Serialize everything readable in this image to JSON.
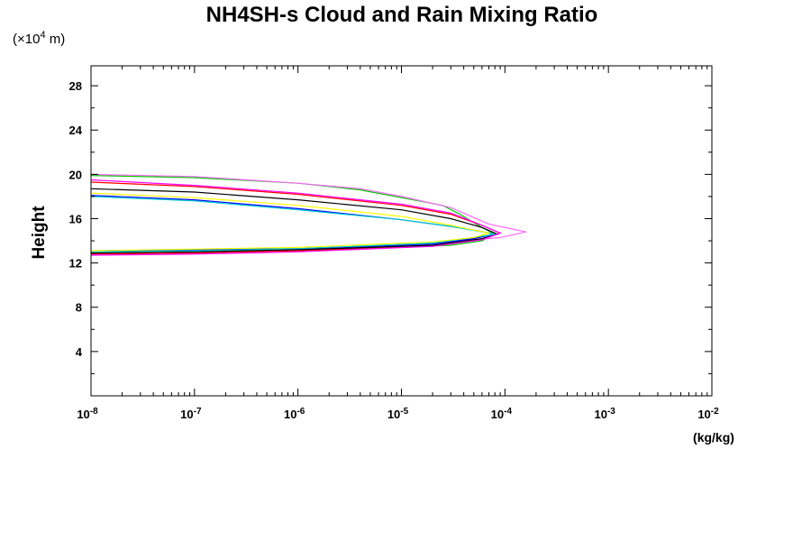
{
  "chart_data": {
    "type": "line",
    "title": "NH4SH-s Cloud and Rain Mixing Ratio",
    "ylabel": "Height",
    "xlabel": "(kg/kg)",
    "y_scale_note_prefix": "(×10",
    "y_scale_note_exp": "4",
    "y_scale_note_suffix": " m)",
    "x_scale": "log",
    "xlim": [
      1e-08,
      0.01
    ],
    "ylim": [
      0,
      29.8
    ],
    "x_ticks": [
      {
        "base": "10",
        "exp": "-8",
        "value": 1e-08
      },
      {
        "base": "10",
        "exp": "-7",
        "value": 1e-07
      },
      {
        "base": "10",
        "exp": "-6",
        "value": 1e-06
      },
      {
        "base": "10",
        "exp": "-5",
        "value": 1e-05
      },
      {
        "base": "10",
        "exp": "-4",
        "value": 0.0001
      },
      {
        "base": "10",
        "exp": "-3",
        "value": 0.001
      },
      {
        "base": "10",
        "exp": "-2",
        "value": 0.01
      }
    ],
    "y_ticks": [
      {
        "label": "4",
        "value": 4
      },
      {
        "label": "8",
        "value": 8
      },
      {
        "label": "12",
        "value": 12
      },
      {
        "label": "16",
        "value": 16
      },
      {
        "label": "20",
        "value": 20
      },
      {
        "label": "24",
        "value": 24
      },
      {
        "label": "28",
        "value": 28
      }
    ],
    "y_minor_step": 2,
    "grid": false,
    "series": [
      {
        "color": "#00cc00",
        "x": [
          1e-08,
          1e-07,
          1e-06,
          4e-06,
          1e-05,
          2.5e-05,
          3.5e-05,
          6e-05,
          8e-05,
          6e-05,
          3e-05,
          1e-05,
          1e-06,
          1e-07,
          1e-08
        ],
        "y": [
          19.9,
          19.7,
          19.2,
          18.6,
          17.9,
          17.2,
          16.5,
          15.2,
          14.6,
          14.0,
          13.6,
          13.4,
          13.2,
          13.1,
          13.1
        ]
      },
      {
        "color": "#ff66ff",
        "x": [
          1e-08,
          1e-07,
          1e-06,
          4e-06,
          1e-05,
          3e-05,
          7e-05,
          0.00016,
          9e-05,
          4e-05,
          1e-05,
          1e-06,
          1e-07,
          1e-08
        ],
        "y": [
          20.0,
          19.8,
          19.2,
          18.7,
          18.0,
          17.0,
          15.5,
          14.8,
          14.3,
          14.0,
          13.6,
          13.2,
          12.9,
          12.8
        ]
      },
      {
        "color": "#ff0000",
        "x": [
          1e-08,
          1e-07,
          1e-06,
          1e-05,
          3e-05,
          6e-05,
          9e-05,
          6e-05,
          2e-05,
          1e-06,
          1e-07,
          1e-08
        ],
        "y": [
          19.3,
          18.9,
          18.2,
          17.2,
          16.4,
          15.4,
          14.7,
          14.1,
          13.5,
          13.1,
          12.9,
          12.8
        ]
      },
      {
        "color": "#000000",
        "x": [
          1e-08,
          1e-07,
          1e-06,
          1e-05,
          3e-05,
          6e-05,
          8.5e-05,
          6e-05,
          2e-05,
          1e-06,
          1e-07,
          1e-08
        ],
        "y": [
          18.7,
          18.4,
          17.7,
          16.8,
          16.0,
          15.2,
          14.6,
          14.2,
          13.6,
          13.2,
          13.0,
          12.9
        ]
      },
      {
        "color": "#0000ff",
        "x": [
          1e-08,
          1e-07,
          1e-06,
          1e-05,
          3e-05,
          5.5e-05,
          8e-05,
          5e-05,
          2e-05,
          1e-06,
          1e-07,
          1e-08
        ],
        "y": [
          18.1,
          17.7,
          16.9,
          15.9,
          15.3,
          14.9,
          14.6,
          14.2,
          13.7,
          13.3,
          13.2,
          13.1
        ]
      },
      {
        "color": "#00cccc",
        "x": [
          1e-08,
          1e-07,
          1e-06,
          1e-05,
          3e-05,
          6e-05,
          8e-05,
          5e-05,
          2e-05,
          1e-06,
          1e-07,
          1e-08
        ],
        "y": [
          18.0,
          17.6,
          16.8,
          15.9,
          15.3,
          14.8,
          14.6,
          14.3,
          13.8,
          13.3,
          13.1,
          13.0
        ]
      },
      {
        "color": "#ffff00",
        "x": [
          1e-08,
          1e-07,
          1e-06,
          1e-05,
          3e-05,
          7e-05,
          5e-05,
          2e-05,
          1e-06,
          1e-08
        ],
        "y": [
          18.3,
          17.9,
          17.2,
          16.2,
          15.4,
          14.7,
          14.3,
          13.9,
          13.4,
          13.1
        ]
      },
      {
        "color": "#ff00ff",
        "x": [
          1e-08,
          1e-07,
          1e-06,
          1e-05,
          3e-05,
          6e-05,
          9e-05,
          6e-05,
          2e-05,
          1e-06,
          1e-07,
          1e-08
        ],
        "y": [
          19.5,
          19.0,
          18.3,
          17.3,
          16.5,
          15.4,
          14.7,
          14.1,
          13.5,
          13.0,
          12.8,
          12.7
        ]
      }
    ]
  }
}
